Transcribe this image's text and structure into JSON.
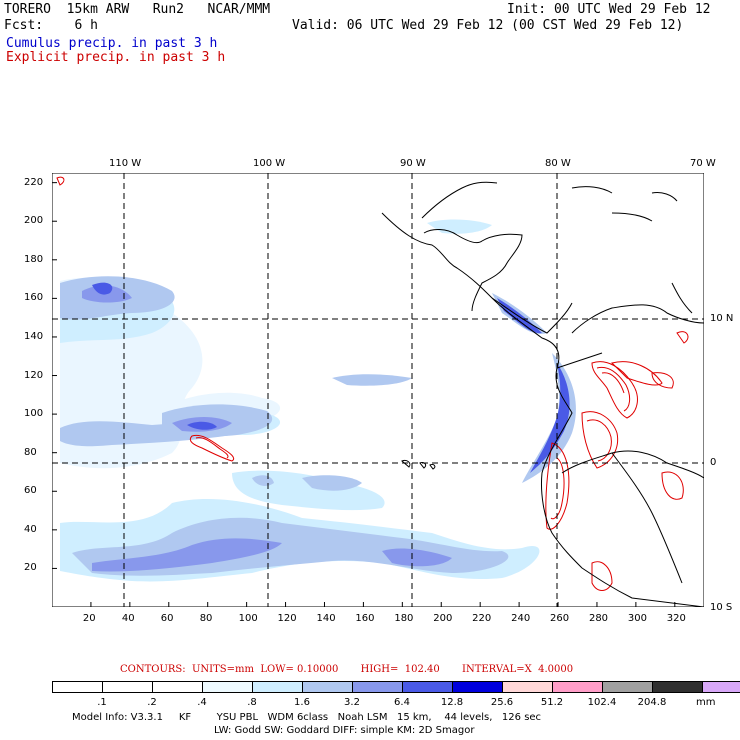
{
  "header": {
    "line1_left": "TORERO  15km ARW   Run2   NCAR/MMM",
    "line1_right": "Init: 00 UTC Wed 29 Feb 12",
    "line2_left": "Fcst:    6 h",
    "line2_right": "Valid: 06 UTC Wed 29 Feb 12 (00 CST Wed 29 Feb 12)",
    "cumulus_label": "Cumulus precip. in past 3 h",
    "explicit_label": "Explicit precip. in past 3 h",
    "cumulus_color": "#0000cc",
    "explicit_color": "#cc0000"
  },
  "map": {
    "lon_labels_top": [
      "110 W",
      "100 W",
      "90 W",
      "80 W",
      "70 W"
    ],
    "lat_labels_right": [
      "10 N",
      "0",
      "10 S"
    ],
    "y_ticks": [
      "220",
      "200",
      "180",
      "160",
      "140",
      "120",
      "100",
      "80",
      "60",
      "40",
      "20"
    ],
    "x_ticks": [
      "20",
      "40",
      "60",
      "80",
      "100",
      "120",
      "140",
      "160",
      "180",
      "200",
      "220",
      "240",
      "260",
      "280",
      "300",
      "320"
    ],
    "grid_style": "dashed",
    "x_range": [
      0,
      335
    ],
    "y_range": [
      0,
      225
    ]
  },
  "contours_line": "CONTOURS:  UNITS=mm  LOW= 0.10000       HIGH=  102.40       INTERVAL=X  4.0000",
  "colorbar": {
    "labels": [
      ".1",
      ".2",
      ".4",
      ".8",
      "1.6",
      "3.2",
      "6.4",
      "12.8",
      "25.6",
      "51.2",
      "102.4",
      "204.8"
    ],
    "unit": "mm",
    "colors": [
      "#ffffff",
      "#ffffff",
      "#ffffff",
      "#eefaff",
      "#cfeeff",
      "#b0c8f0",
      "#8898ec",
      "#4a5ae6",
      "#0000dd",
      "#ffd8d8",
      "#ff9ec8",
      "#a0a0a0",
      "#303030",
      "#d8a8f8"
    ]
  },
  "footer": {
    "line1": "Model Info: V3.3.1     KF        YSU PBL   WDM 6class   Noah LSM   15 km,    44 levels,   126 sec",
    "line2": "LW: Godd SW: Goddard DIFF: simple KM: 2D Smagor"
  }
}
